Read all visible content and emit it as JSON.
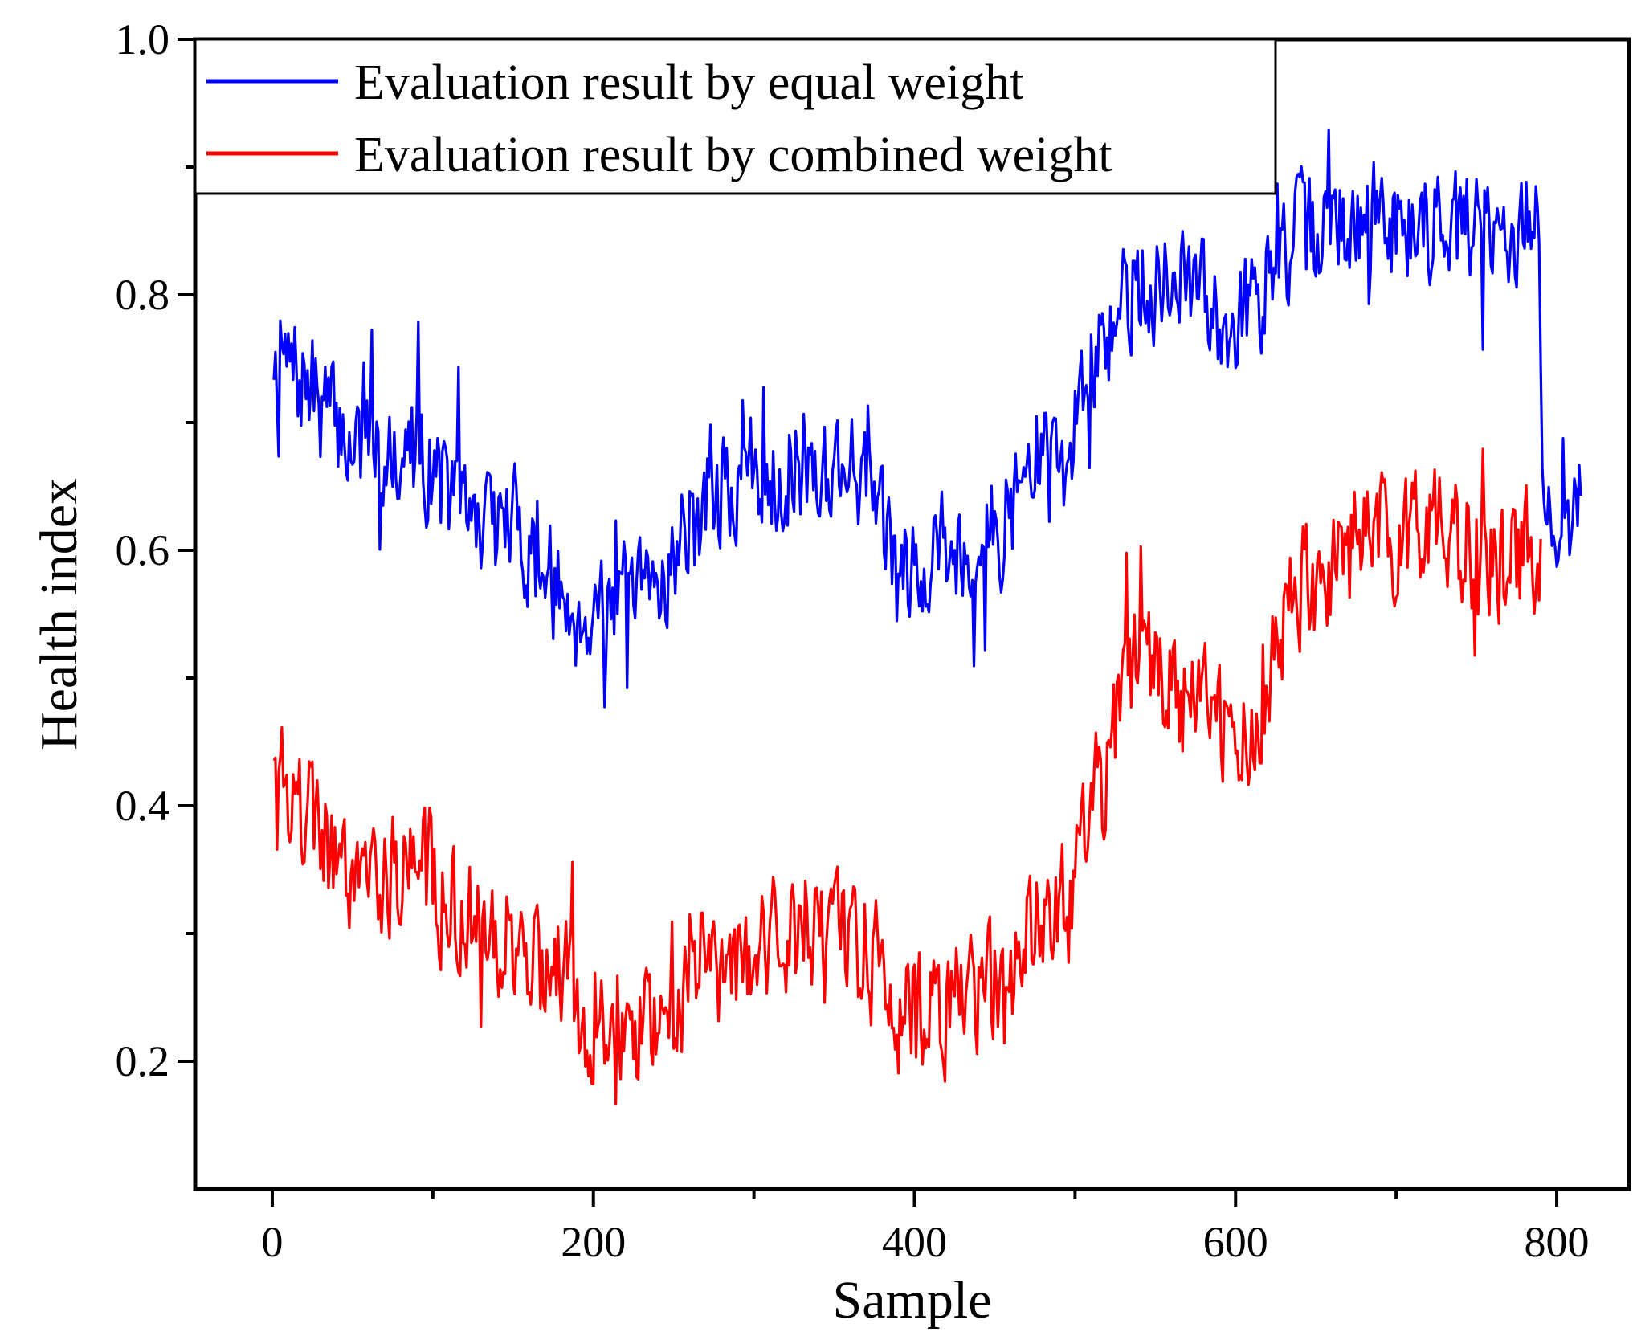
{
  "chart_data": {
    "type": "line",
    "title": "",
    "xlabel": "Sample",
    "ylabel": "Health index",
    "xlim": [
      -48,
      845
    ],
    "ylim": [
      0.1,
      1.0
    ],
    "xticks": [
      0,
      200,
      400,
      600,
      800
    ],
    "xtick_labels": [
      "0",
      "200",
      "400",
      "600",
      "800"
    ],
    "x_minor_ticks": [
      100,
      300,
      500,
      700
    ],
    "yticks": [
      0.2,
      0.4,
      0.6,
      0.8,
      1.0
    ],
    "ytick_labels": [
      "0.2",
      "0.4",
      "0.6",
      "0.8",
      "1.0"
    ],
    "y_minor_ticks": [
      0.3,
      0.5,
      0.7,
      0.9
    ],
    "grid": false,
    "legend_position": "top-left",
    "x_range": [
      1,
      815
    ],
    "series": [
      {
        "name": "Evaluation result by equal weight",
        "color": "#0000ff",
        "trend": [
          [
            1,
            0.755
          ],
          [
            10,
            0.74
          ],
          [
            20,
            0.73
          ],
          [
            30,
            0.715
          ],
          [
            45,
            0.69
          ],
          [
            60,
            0.68
          ],
          [
            80,
            0.685
          ],
          [
            100,
            0.665
          ],
          [
            115,
            0.635
          ],
          [
            130,
            0.62
          ],
          [
            150,
            0.62
          ],
          [
            165,
            0.6
          ],
          [
            180,
            0.56
          ],
          [
            195,
            0.55
          ],
          [
            210,
            0.57
          ],
          [
            225,
            0.55
          ],
          [
            240,
            0.575
          ],
          [
            255,
            0.61
          ],
          [
            270,
            0.64
          ],
          [
            285,
            0.645
          ],
          [
            300,
            0.66
          ],
          [
            320,
            0.665
          ],
          [
            340,
            0.665
          ],
          [
            360,
            0.67
          ],
          [
            370,
            0.66
          ],
          [
            380,
            0.615
          ],
          [
            390,
            0.57
          ],
          [
            400,
            0.6
          ],
          [
            420,
            0.6
          ],
          [
            440,
            0.6
          ],
          [
            460,
            0.63
          ],
          [
            470,
            0.66
          ],
          [
            480,
            0.68
          ],
          [
            490,
            0.66
          ],
          [
            500,
            0.69
          ],
          [
            510,
            0.74
          ],
          [
            520,
            0.76
          ],
          [
            530,
            0.8
          ],
          [
            545,
            0.81
          ],
          [
            560,
            0.805
          ],
          [
            580,
            0.8
          ],
          [
            595,
            0.78
          ],
          [
            610,
            0.795
          ],
          [
            620,
            0.81
          ],
          [
            635,
            0.84
          ],
          [
            650,
            0.85
          ],
          [
            670,
            0.855
          ],
          [
            690,
            0.86
          ],
          [
            710,
            0.855
          ],
          [
            730,
            0.86
          ],
          [
            750,
            0.855
          ],
          [
            770,
            0.85
          ],
          [
            785,
            0.855
          ],
          [
            789,
            0.845
          ],
          [
            791,
            0.7
          ],
          [
            793,
            0.63
          ],
          [
            800,
            0.625
          ],
          [
            815,
            0.63
          ]
        ],
        "noise_amplitude": 0.055,
        "seed": 7
      },
      {
        "name": "Evaluation result by combined weight",
        "color": "#ff0000",
        "trend": [
          [
            1,
            0.415
          ],
          [
            10,
            0.405
          ],
          [
            20,
            0.395
          ],
          [
            30,
            0.38
          ],
          [
            45,
            0.36
          ],
          [
            60,
            0.35
          ],
          [
            80,
            0.355
          ],
          [
            100,
            0.345
          ],
          [
            115,
            0.315
          ],
          [
            130,
            0.3
          ],
          [
            150,
            0.3
          ],
          [
            165,
            0.28
          ],
          [
            180,
            0.245
          ],
          [
            195,
            0.235
          ],
          [
            210,
            0.245
          ],
          [
            225,
            0.225
          ],
          [
            240,
            0.24
          ],
          [
            255,
            0.26
          ],
          [
            270,
            0.28
          ],
          [
            285,
            0.28
          ],
          [
            300,
            0.285
          ],
          [
            320,
            0.29
          ],
          [
            340,
            0.29
          ],
          [
            360,
            0.295
          ],
          [
            370,
            0.29
          ],
          [
            380,
            0.26
          ],
          [
            390,
            0.225
          ],
          [
            400,
            0.25
          ],
          [
            420,
            0.245
          ],
          [
            440,
            0.245
          ],
          [
            460,
            0.265
          ],
          [
            470,
            0.285
          ],
          [
            480,
            0.31
          ],
          [
            490,
            0.32
          ],
          [
            500,
            0.33
          ],
          [
            510,
            0.39
          ],
          [
            520,
            0.43
          ],
          [
            530,
            0.5
          ],
          [
            545,
            0.52
          ],
          [
            560,
            0.49
          ],
          [
            580,
            0.48
          ],
          [
            595,
            0.455
          ],
          [
            610,
            0.45
          ],
          [
            620,
            0.49
          ],
          [
            635,
            0.56
          ],
          [
            650,
            0.58
          ],
          [
            670,
            0.6
          ],
          [
            690,
            0.61
          ],
          [
            710,
            0.605
          ],
          [
            730,
            0.61
          ],
          [
            750,
            0.6
          ],
          [
            770,
            0.59
          ],
          [
            789,
            0.6
          ],
          [
            790,
            0.58
          ]
        ],
        "noise_amplitude": 0.06,
        "seed": 19
      }
    ]
  }
}
